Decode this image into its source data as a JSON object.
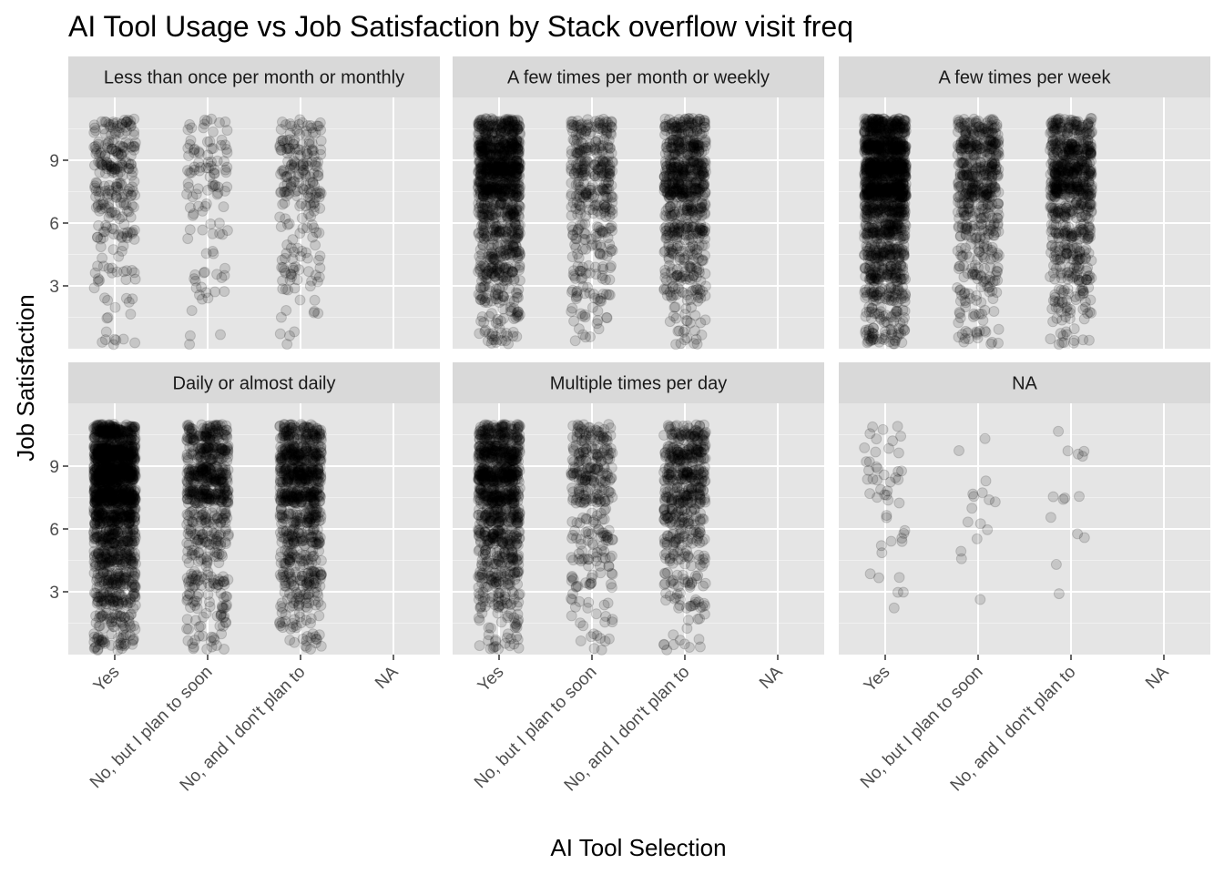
{
  "chart_data": {
    "type": "scatter",
    "title": "AI Tool Usage vs Job Satisfaction by Stack overflow visit freq",
    "xlabel": "AI Tool Selection",
    "ylabel": "Job Satisfaction",
    "categories": [
      "Yes",
      "No, but I plan to soon",
      "No, and I don't plan to",
      "NA"
    ],
    "y_ticks": [
      3,
      6,
      9
    ],
    "ylim": [
      0,
      12
    ],
    "jitter": true,
    "point_color": "#000000",
    "point_alpha": 0.15,
    "panel_background": "#e5e5e5",
    "strip_background": "#d9d9d9",
    "grid": true,
    "facets": [
      {
        "label": "Less than once per month or monthly",
        "counts": {
          "Yes": 260,
          "No, but I plan to soon": 110,
          "No, and I don't plan to": 220,
          "NA": 0
        }
      },
      {
        "label": "A few times per month or weekly",
        "counts": {
          "Yes": 1100,
          "No, but I plan to soon": 380,
          "No, and I don't plan to": 700,
          "NA": 0
        }
      },
      {
        "label": "A few times per week",
        "counts": {
          "Yes": 1500,
          "No, but I plan to soon": 550,
          "No, and I don't plan to": 750,
          "NA": 0
        }
      },
      {
        "label": "Daily or almost daily",
        "counts": {
          "Yes": 1700,
          "No, but I plan to soon": 650,
          "No, and I don't plan to": 850,
          "NA": 0
        }
      },
      {
        "label": "Multiple times per day",
        "counts": {
          "Yes": 1000,
          "No, but I plan to soon": 320,
          "No, and I don't plan to": 520,
          "NA": 0
        }
      },
      {
        "label": "NA",
        "counts": {
          "Yes": 48,
          "No, but I plan to soon": 16,
          "No, and I don't plan to": 14,
          "NA": 0
        }
      }
    ]
  }
}
